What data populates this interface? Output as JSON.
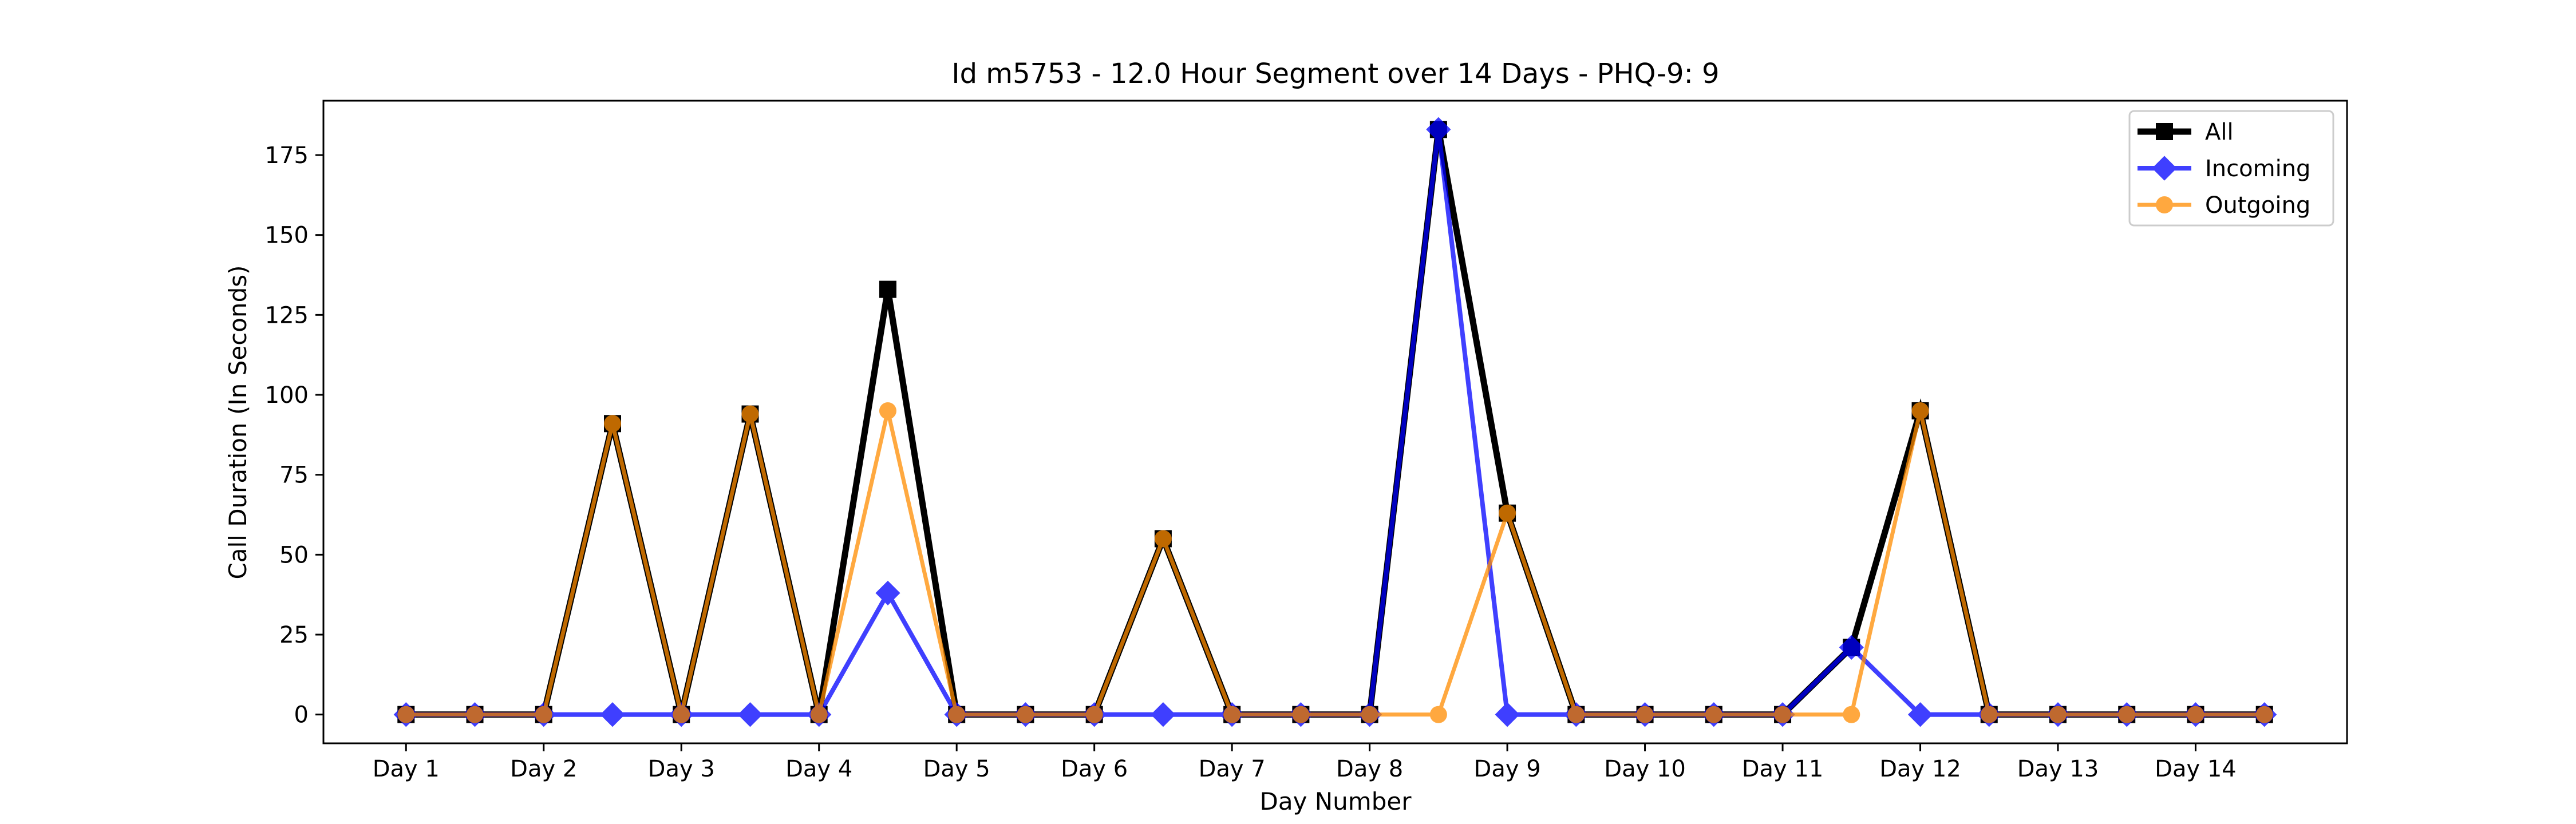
{
  "chart_data": {
    "type": "line",
    "title": "Id m5753 - 12.0 Hour Segment over 14 Days - PHQ-9: 9",
    "xlabel": "Day Number",
    "ylabel": "Call Duration (In Seconds)",
    "ylim": [
      -9,
      192
    ],
    "yticks": [
      0,
      25,
      50,
      75,
      100,
      125,
      150,
      175
    ],
    "grid": false,
    "legend_position": "top-right",
    "xtick_labels": [
      "Day 1",
      "Day 2",
      "Day 3",
      "Day 4",
      "Day 5",
      "Day 6",
      "Day 7",
      "Day 8",
      "Day 9",
      "Day 10",
      "Day 11",
      "Day 12",
      "Day 13",
      "Day 14"
    ],
    "x": [
      1,
      1.5,
      2,
      2.5,
      3,
      3.5,
      4,
      4.5,
      5,
      5.5,
      6,
      6.5,
      7,
      7.5,
      8,
      8.5,
      9,
      9.5,
      10,
      10.5,
      11,
      11.5,
      12,
      12.5,
      13,
      13.5,
      14,
      14.5
    ],
    "series": [
      {
        "name": "All",
        "color": "#000000",
        "marker": "square",
        "values": [
          0,
          0,
          0,
          91,
          0,
          94,
          0,
          133,
          0,
          0,
          0,
          55,
          0,
          0,
          0,
          183,
          63,
          0,
          0,
          0,
          0,
          21,
          95,
          0,
          0,
          0,
          0,
          0
        ]
      },
      {
        "name": "Incoming",
        "color": "#0000ff",
        "marker": "diamond",
        "values": [
          0,
          0,
          0,
          0,
          0,
          0,
          0,
          38,
          0,
          0,
          0,
          0,
          0,
          0,
          0,
          183,
          0,
          0,
          0,
          0,
          0,
          21,
          0,
          0,
          0,
          0,
          0,
          0
        ]
      },
      {
        "name": "Outgoing",
        "color": "#ff8c00",
        "marker": "circle",
        "values": [
          0,
          0,
          0,
          91,
          0,
          94,
          0,
          95,
          0,
          0,
          0,
          55,
          0,
          0,
          0,
          0,
          63,
          0,
          0,
          0,
          0,
          0,
          95,
          0,
          0,
          0,
          0,
          0
        ]
      }
    ]
  }
}
